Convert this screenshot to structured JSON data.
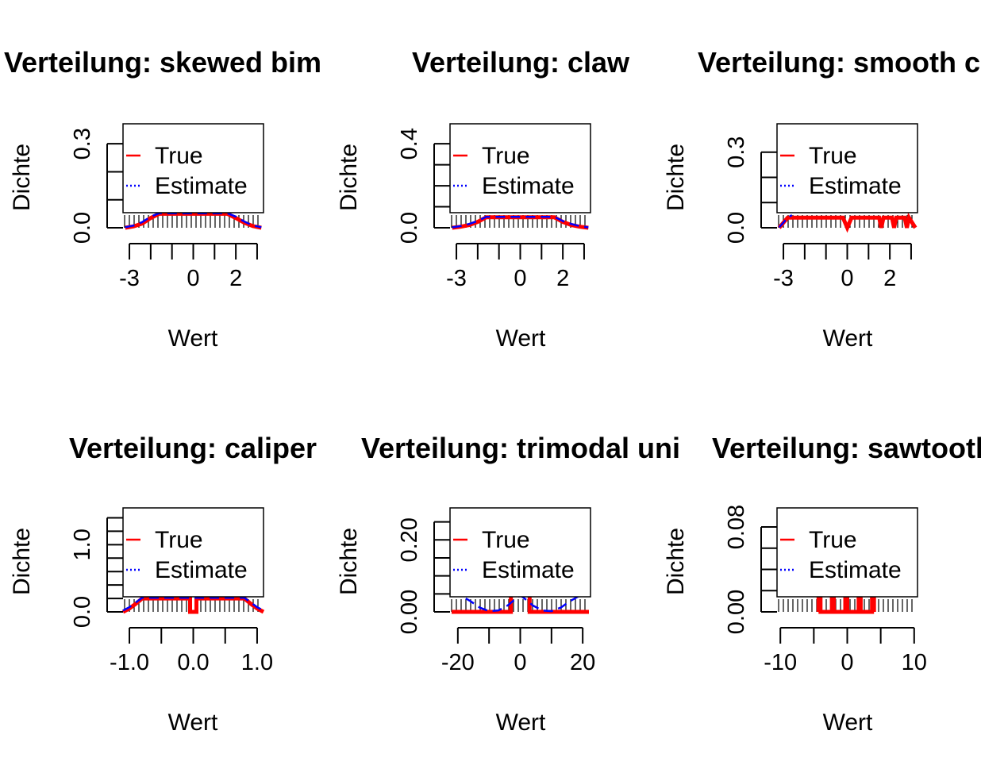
{
  "chart_data": [
    {
      "type": "line",
      "title": "Verteilung: skewed bim",
      "xlabel": "Wert",
      "ylabel": "Dichte",
      "xlim": [
        -3.3,
        3.3
      ],
      "ylim": [
        0,
        0.36
      ],
      "xticks": [
        -3,
        -2,
        -1,
        0,
        1,
        2,
        3
      ],
      "xtick_labels": [
        "-3",
        "0",
        "2"
      ],
      "yticks": [
        0,
        0.1,
        0.2,
        0.3
      ],
      "ytick_labels": [
        "0.0",
        "0.3"
      ],
      "legend": {
        "position": "top-right",
        "entries": [
          "True",
          "Estimate"
        ]
      },
      "series": [
        {
          "name": "True",
          "color": "#ff0000",
          "x": [
            -3.2,
            -2.8,
            -2.4,
            -2.0,
            -1.6,
            1.6,
            2.0,
            2.4,
            2.8,
            3.2
          ],
          "y": [
            0.0,
            0.005,
            0.015,
            0.035,
            0.05,
            0.05,
            0.035,
            0.018,
            0.006,
            0.0
          ]
        },
        {
          "name": "Estimate",
          "color": "#0000ff",
          "x": [
            -3.2,
            -2.8,
            -2.4,
            -2.0,
            -1.6,
            1.6,
            2.0,
            2.4,
            2.8,
            3.2
          ],
          "y": [
            0.002,
            0.008,
            0.02,
            0.04,
            0.052,
            0.052,
            0.04,
            0.022,
            0.008,
            0.002
          ]
        }
      ]
    },
    {
      "type": "line",
      "title": "Verteilung: claw",
      "xlabel": "Wert",
      "ylabel": "Dichte",
      "xlim": [
        -3.3,
        3.3
      ],
      "ylim": [
        0,
        0.48
      ],
      "xticks": [
        -3,
        -2,
        -1,
        0,
        1,
        2,
        3
      ],
      "xtick_labels": [
        "-3",
        "0",
        "2"
      ],
      "yticks": [
        0,
        0.1,
        0.2,
        0.3,
        0.4
      ],
      "ytick_labels": [
        "0.0",
        "0.4"
      ],
      "legend": {
        "position": "top-right",
        "entries": [
          "True",
          "Estimate"
        ]
      },
      "series": [
        {
          "name": "True",
          "color": "#ff0000",
          "x": [
            -3.2,
            -2.8,
            -2.4,
            -2.0,
            -1.6,
            1.6,
            2.0,
            2.4,
            2.8,
            3.2
          ],
          "y": [
            0.0,
            0.005,
            0.013,
            0.028,
            0.05,
            0.05,
            0.028,
            0.013,
            0.005,
            0.0
          ]
        },
        {
          "name": "Estimate",
          "color": "#0000ff",
          "x": [
            -3.2,
            -2.8,
            -2.4,
            -2.0,
            -1.6,
            1.6,
            2.0,
            2.4,
            2.8,
            3.2
          ],
          "y": [
            0.002,
            0.008,
            0.018,
            0.032,
            0.052,
            0.052,
            0.032,
            0.018,
            0.008,
            0.002
          ]
        }
      ]
    },
    {
      "type": "line",
      "title": "Verteilung: smooth co",
      "xlabel": "Wert",
      "ylabel": "Dichte",
      "xlim": [
        -3.3,
        3.3
      ],
      "ylim": [
        0,
        0.4
      ],
      "xticks": [
        -3,
        -2,
        -1,
        0,
        1,
        2,
        3
      ],
      "xtick_labels": [
        "-3",
        "0",
        "2"
      ],
      "yticks": [
        0,
        0.1,
        0.2,
        0.3
      ],
      "ytick_labels": [
        "0.0",
        "0.3"
      ],
      "legend": {
        "position": "top-right",
        "entries": [
          "True",
          "Estimate"
        ]
      },
      "series": [
        {
          "name": "True",
          "color": "#ff0000",
          "x": [
            -3.2,
            -3.0,
            -2.8,
            -0.2,
            0.0,
            0.2,
            1.5,
            1.6,
            1.7,
            2.1,
            2.2,
            2.3,
            2.7,
            2.8,
            2.9,
            3.2
          ],
          "y": [
            0.0,
            0.02,
            0.04,
            0.04,
            0.0,
            0.04,
            0.04,
            0.0,
            0.04,
            0.04,
            0.0,
            0.04,
            0.04,
            0.0,
            0.04,
            0.0
          ]
        },
        {
          "name": "Estimate",
          "color": "#0000ff",
          "x": [
            -3.2,
            -3.0,
            -2.8,
            -2.6
          ],
          "y": [
            0.002,
            0.02,
            0.04,
            0.05
          ]
        }
      ]
    },
    {
      "type": "line",
      "title": "Verteilung: caliper",
      "xlabel": "Wert",
      "ylabel": "Dichte",
      "xlim": [
        -1.1,
        1.1
      ],
      "ylim": [
        0,
        1.5
      ],
      "xticks": [
        -1.0,
        -0.5,
        0.0,
        0.5,
        1.0
      ],
      "xtick_labels": [
        "-1.0",
        "0.0",
        "1.0"
      ],
      "yticks": [
        0,
        0.2,
        0.4,
        0.6,
        0.8,
        1.0,
        1.2,
        1.4
      ],
      "ytick_labels": [
        "0.0",
        "1.0"
      ],
      "legend": {
        "position": "top-right",
        "entries": [
          "True",
          "Estimate"
        ]
      },
      "series": [
        {
          "name": "True",
          "color": "#ff0000",
          "x": [
            -1.1,
            -1.0,
            -0.9,
            -0.8,
            -0.05,
            -0.05,
            0.05,
            0.05,
            0.8,
            0.9,
            1.0,
            1.1
          ],
          "y": [
            0.0,
            0.05,
            0.12,
            0.2,
            0.2,
            0.0,
            0.0,
            0.2,
            0.2,
            0.12,
            0.05,
            0.0
          ]
        },
        {
          "name": "Estimate",
          "color": "#0000ff",
          "x": [
            -1.1,
            -1.0,
            -0.9,
            -0.8,
            0.8,
            0.9,
            1.0,
            1.1
          ],
          "y": [
            0.02,
            0.07,
            0.14,
            0.21,
            0.21,
            0.14,
            0.07,
            0.02
          ]
        }
      ]
    },
    {
      "type": "line",
      "title": "Verteilung: trimodal uni",
      "xlabel": "Wert",
      "ylabel": "Dichte",
      "xlim": [
        -22.5,
        22.5
      ],
      "ylim": [
        0,
        0.28
      ],
      "xticks": [
        -20,
        -10,
        0,
        10,
        20
      ],
      "xtick_labels": [
        "-20",
        "0",
        "20"
      ],
      "yticks": [
        0,
        0.05,
        0.1,
        0.15,
        0.2,
        0.25
      ],
      "ytick_labels": [
        "0.00",
        "0.20"
      ],
      "legend": {
        "position": "top-right",
        "entries": [
          "True",
          "Estimate"
        ]
      },
      "series": [
        {
          "name": "True",
          "color": "#ff0000",
          "x": [
            -22,
            -3,
            -3,
            3,
            3,
            22
          ],
          "y": [
            0.0,
            0.0,
            0.05,
            0.05,
            0.0,
            0.0
          ]
        },
        {
          "name": "Estimate",
          "color": "#0000ff",
          "x": [
            -22,
            -19,
            -16,
            -13,
            -10,
            -7,
            -4,
            -1,
            0,
            1,
            4,
            7,
            10,
            13,
            16,
            19,
            22
          ],
          "y": [
            0.05,
            0.045,
            0.03,
            0.012,
            0.002,
            0.004,
            0.018,
            0.04,
            0.045,
            0.04,
            0.018,
            0.004,
            0.002,
            0.012,
            0.03,
            0.045,
            0.05
          ]
        }
      ]
    },
    {
      "type": "line",
      "title": "Verteilung: sawtootl",
      "xlabel": "Wert",
      "ylabel": "Dichte",
      "xlim": [
        -10.5,
        10.5
      ],
      "ylim": [
        0,
        0.095
      ],
      "xticks": [
        -10,
        -5,
        0,
        5,
        10
      ],
      "xtick_labels": [
        "-10",
        "0",
        "10"
      ],
      "yticks": [
        0,
        0.02,
        0.04,
        0.06,
        0.08
      ],
      "ytick_labels": [
        "0.00",
        "0.08"
      ],
      "legend": {
        "position": "top-right",
        "entries": [
          "True",
          "Estimate"
        ]
      },
      "series": [
        {
          "name": "True",
          "color": "#ff0000",
          "x": [
            -4.3,
            -4.3,
            -4.0,
            -4.0,
            -2.3,
            -2.3,
            -2.0,
            -2.0,
            -0.3,
            -0.3,
            0.0,
            0.0,
            1.7,
            1.7,
            2.0,
            2.0,
            3.7,
            3.7,
            4.0,
            4.0
          ],
          "y": [
            0.0,
            0.012,
            0.012,
            0.0,
            0.0,
            0.012,
            0.012,
            0.0,
            0.0,
            0.012,
            0.012,
            0.0,
            0.0,
            0.012,
            0.012,
            0.0,
            0.0,
            0.012,
            0.012,
            0.0
          ]
        },
        {
          "name": "Estimate",
          "color": "#0000ff",
          "x": [],
          "y": []
        }
      ]
    }
  ]
}
